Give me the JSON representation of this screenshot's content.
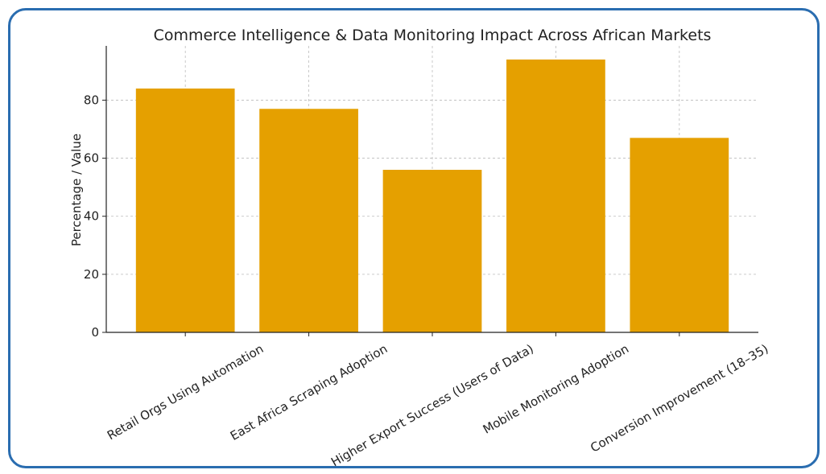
{
  "chart_data": {
    "type": "bar",
    "title": "Commerce Intelligence & Data Monitoring Impact Across African Markets",
    "xlabel": "",
    "ylabel": "Percentage / Value",
    "categories": [
      "Retail Orgs Using Automation",
      "East Africa Scraping Adoption",
      "Higher Export Success (Users of Data)",
      "Mobile Monitoring Adoption",
      "Conversion Improvement (18–35)"
    ],
    "values": [
      84,
      77,
      56,
      94,
      67
    ],
    "ylim": [
      0,
      98.7
    ],
    "yticks": [
      0,
      20,
      40,
      60,
      80
    ],
    "grid": true,
    "bar_color": "#e5a000",
    "frame_color": "#2a6db0"
  }
}
